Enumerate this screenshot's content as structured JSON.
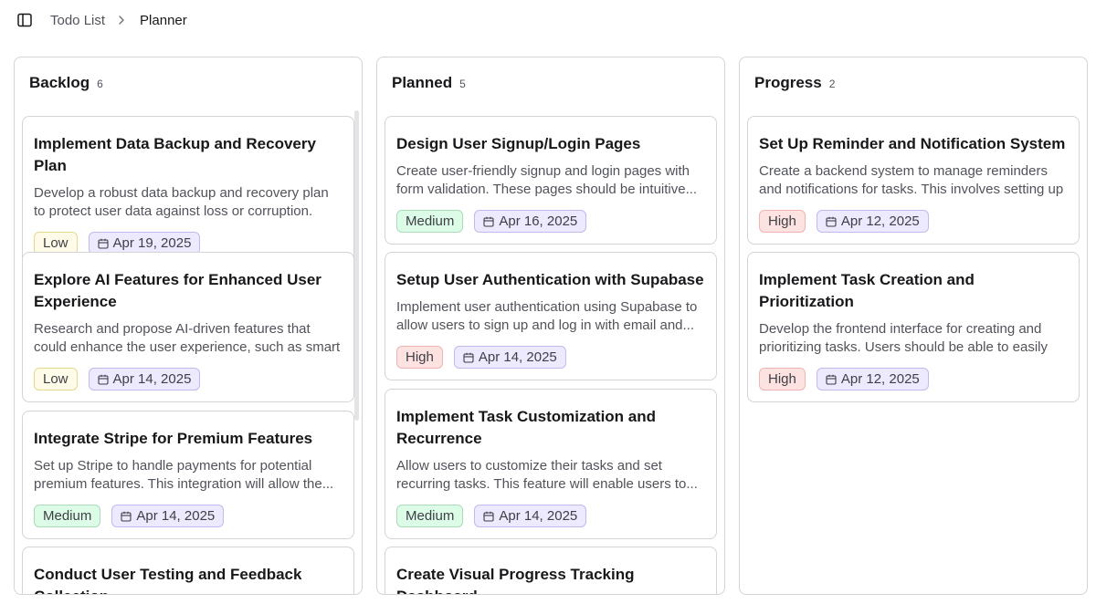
{
  "breadcrumb": {
    "parent": "Todo List",
    "current": "Planner"
  },
  "columns": [
    {
      "title": "Backlog",
      "count": "6",
      "cards": [
        {
          "title": "Implement Data Backup and Recovery Plan",
          "desc": "Develop a robust data backup and recovery plan to protect user data against loss or corruption. This...",
          "priority": "Low",
          "date": "Apr 19, 2025"
        },
        {
          "title": "Explore AI Features for Enhanced User Experience",
          "desc": "Research and propose AI-driven features that could enhance the user experience, such as smart task...",
          "priority": "Low",
          "date": "Apr 14, 2025"
        },
        {
          "title": "Integrate Stripe for Premium Features",
          "desc": "Set up Stripe to handle payments for potential premium features. This integration will allow the...",
          "priority": "Medium",
          "date": "Apr 14, 2025"
        },
        {
          "title": "Conduct User Testing and Feedback Collection"
        }
      ]
    },
    {
      "title": "Planned",
      "count": "5",
      "cards": [
        {
          "title": "Design User Signup/Login Pages",
          "desc": "Create user-friendly signup and login pages with form validation. These pages should be intuitive...",
          "priority": "Medium",
          "date": "Apr 16, 2025"
        },
        {
          "title": "Setup User Authentication with Supabase",
          "desc": "Implement user authentication using Supabase to allow users to sign up and log in with email and...",
          "priority": "High",
          "date": "Apr 14, 2025"
        },
        {
          "title": "Implement Task Customization and Recurrence",
          "desc": "Allow users to customize their tasks and set recurring tasks. This feature will enable users to...",
          "priority": "Medium",
          "date": "Apr 14, 2025"
        },
        {
          "title": "Create Visual Progress Tracking Dashboard"
        }
      ]
    },
    {
      "title": "Progress",
      "count": "2",
      "cards": [
        {
          "title": "Set Up Reminder and Notification System",
          "desc": "Create a backend system to manage reminders and notifications for tasks. This involves setting up a...",
          "priority": "High",
          "date": "Apr 12, 2025"
        },
        {
          "title": "Implement Task Creation and Prioritization",
          "desc": "Develop the frontend interface for creating and prioritizing tasks. Users should be able to easily a...",
          "priority": "High",
          "date": "Apr 12, 2025"
        }
      ]
    }
  ]
}
